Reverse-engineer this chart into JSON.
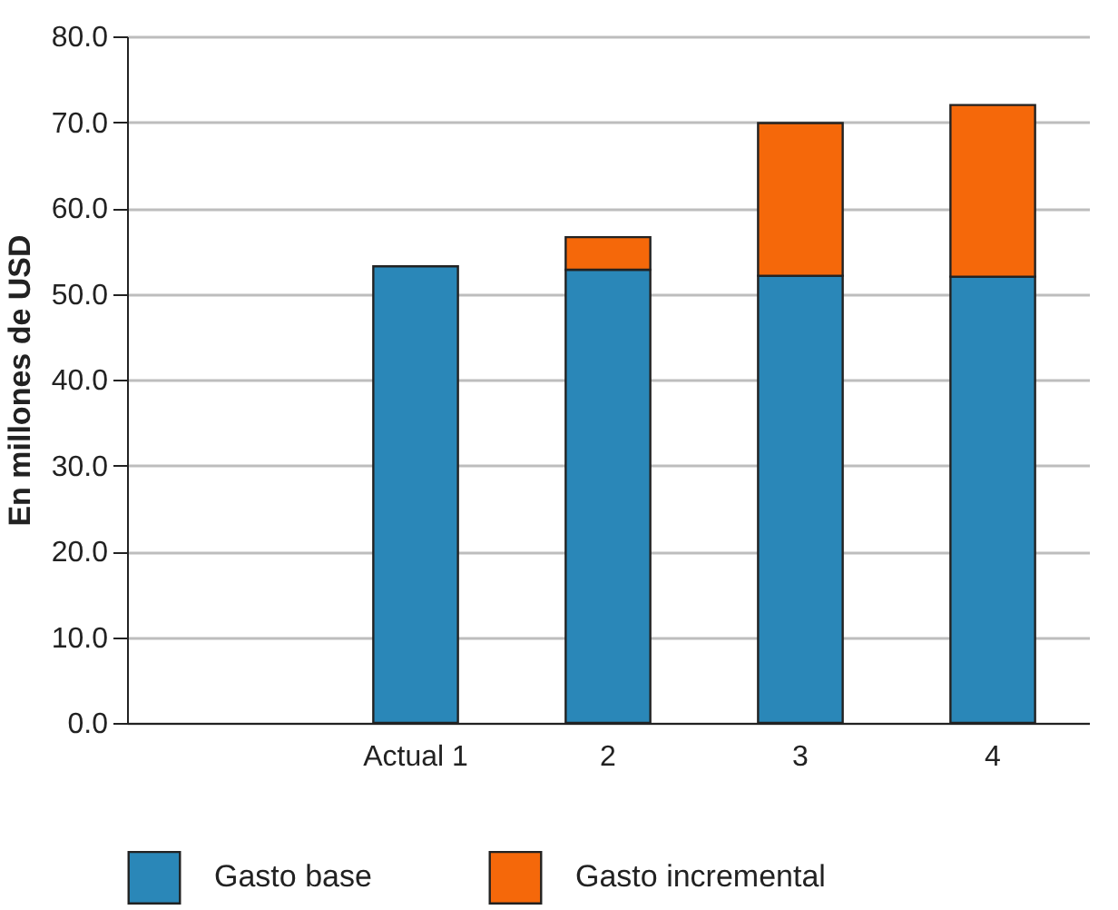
{
  "chart_data": {
    "type": "bar",
    "stacked": true,
    "ylabel": "En millones de USD",
    "categories": [
      null,
      "Actual 1",
      "2",
      "3",
      "4"
    ],
    "series": [
      {
        "name": "Gasto base",
        "color": "#2a87b8",
        "values": [
          null,
          53.2,
          52.8,
          52.1,
          52.0
        ]
      },
      {
        "name": "Gasto incremental",
        "color": "#f5680a",
        "values": [
          null,
          null,
          3.8,
          17.8,
          20.0
        ]
      }
    ],
    "ylim": [
      0,
      80
    ],
    "yticks": [
      {
        "value": 0,
        "label": "0.0"
      },
      {
        "value": 10,
        "label": "10.0"
      },
      {
        "value": 20,
        "label": "20.0"
      },
      {
        "value": 30,
        "label": "30.0"
      },
      {
        "value": 40,
        "label": "40.0"
      },
      {
        "value": 50,
        "label": "50.0"
      },
      {
        "value": 60,
        "label": "60.0"
      },
      {
        "value": 70,
        "label": "70.0"
      },
      {
        "value": 80,
        "label": "80.0"
      }
    ],
    "grid": "y",
    "legend": "bottom"
  }
}
